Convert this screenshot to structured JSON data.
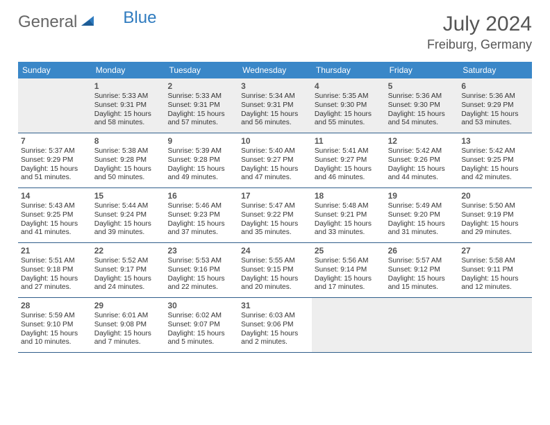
{
  "logo": {
    "text1": "General",
    "text2": "Blue"
  },
  "header": {
    "month": "July 2024",
    "location": "Freiburg, Germany"
  },
  "colors": {
    "brand_blue": "#3a87c8",
    "rule": "#2f5d8a",
    "text": "#333333",
    "muted": "#555555",
    "shade": "#eeeeee"
  },
  "dayheads": [
    "Sunday",
    "Monday",
    "Tuesday",
    "Wednesday",
    "Thursday",
    "Friday",
    "Saturday"
  ],
  "weeks": [
    [
      null,
      {
        "n": "1",
        "sr": "Sunrise: 5:33 AM",
        "ss": "Sunset: 9:31 PM",
        "d1": "Daylight: 15 hours",
        "d2": "and 58 minutes."
      },
      {
        "n": "2",
        "sr": "Sunrise: 5:33 AM",
        "ss": "Sunset: 9:31 PM",
        "d1": "Daylight: 15 hours",
        "d2": "and 57 minutes."
      },
      {
        "n": "3",
        "sr": "Sunrise: 5:34 AM",
        "ss": "Sunset: 9:31 PM",
        "d1": "Daylight: 15 hours",
        "d2": "and 56 minutes."
      },
      {
        "n": "4",
        "sr": "Sunrise: 5:35 AM",
        "ss": "Sunset: 9:30 PM",
        "d1": "Daylight: 15 hours",
        "d2": "and 55 minutes."
      },
      {
        "n": "5",
        "sr": "Sunrise: 5:36 AM",
        "ss": "Sunset: 9:30 PM",
        "d1": "Daylight: 15 hours",
        "d2": "and 54 minutes."
      },
      {
        "n": "6",
        "sr": "Sunrise: 5:36 AM",
        "ss": "Sunset: 9:29 PM",
        "d1": "Daylight: 15 hours",
        "d2": "and 53 minutes."
      }
    ],
    [
      {
        "n": "7",
        "sr": "Sunrise: 5:37 AM",
        "ss": "Sunset: 9:29 PM",
        "d1": "Daylight: 15 hours",
        "d2": "and 51 minutes."
      },
      {
        "n": "8",
        "sr": "Sunrise: 5:38 AM",
        "ss": "Sunset: 9:28 PM",
        "d1": "Daylight: 15 hours",
        "d2": "and 50 minutes."
      },
      {
        "n": "9",
        "sr": "Sunrise: 5:39 AM",
        "ss": "Sunset: 9:28 PM",
        "d1": "Daylight: 15 hours",
        "d2": "and 49 minutes."
      },
      {
        "n": "10",
        "sr": "Sunrise: 5:40 AM",
        "ss": "Sunset: 9:27 PM",
        "d1": "Daylight: 15 hours",
        "d2": "and 47 minutes."
      },
      {
        "n": "11",
        "sr": "Sunrise: 5:41 AM",
        "ss": "Sunset: 9:27 PM",
        "d1": "Daylight: 15 hours",
        "d2": "and 46 minutes."
      },
      {
        "n": "12",
        "sr": "Sunrise: 5:42 AM",
        "ss": "Sunset: 9:26 PM",
        "d1": "Daylight: 15 hours",
        "d2": "and 44 minutes."
      },
      {
        "n": "13",
        "sr": "Sunrise: 5:42 AM",
        "ss": "Sunset: 9:25 PM",
        "d1": "Daylight: 15 hours",
        "d2": "and 42 minutes."
      }
    ],
    [
      {
        "n": "14",
        "sr": "Sunrise: 5:43 AM",
        "ss": "Sunset: 9:25 PM",
        "d1": "Daylight: 15 hours",
        "d2": "and 41 minutes."
      },
      {
        "n": "15",
        "sr": "Sunrise: 5:44 AM",
        "ss": "Sunset: 9:24 PM",
        "d1": "Daylight: 15 hours",
        "d2": "and 39 minutes."
      },
      {
        "n": "16",
        "sr": "Sunrise: 5:46 AM",
        "ss": "Sunset: 9:23 PM",
        "d1": "Daylight: 15 hours",
        "d2": "and 37 minutes."
      },
      {
        "n": "17",
        "sr": "Sunrise: 5:47 AM",
        "ss": "Sunset: 9:22 PM",
        "d1": "Daylight: 15 hours",
        "d2": "and 35 minutes."
      },
      {
        "n": "18",
        "sr": "Sunrise: 5:48 AM",
        "ss": "Sunset: 9:21 PM",
        "d1": "Daylight: 15 hours",
        "d2": "and 33 minutes."
      },
      {
        "n": "19",
        "sr": "Sunrise: 5:49 AM",
        "ss": "Sunset: 9:20 PM",
        "d1": "Daylight: 15 hours",
        "d2": "and 31 minutes."
      },
      {
        "n": "20",
        "sr": "Sunrise: 5:50 AM",
        "ss": "Sunset: 9:19 PM",
        "d1": "Daylight: 15 hours",
        "d2": "and 29 minutes."
      }
    ],
    [
      {
        "n": "21",
        "sr": "Sunrise: 5:51 AM",
        "ss": "Sunset: 9:18 PM",
        "d1": "Daylight: 15 hours",
        "d2": "and 27 minutes."
      },
      {
        "n": "22",
        "sr": "Sunrise: 5:52 AM",
        "ss": "Sunset: 9:17 PM",
        "d1": "Daylight: 15 hours",
        "d2": "and 24 minutes."
      },
      {
        "n": "23",
        "sr": "Sunrise: 5:53 AM",
        "ss": "Sunset: 9:16 PM",
        "d1": "Daylight: 15 hours",
        "d2": "and 22 minutes."
      },
      {
        "n": "24",
        "sr": "Sunrise: 5:55 AM",
        "ss": "Sunset: 9:15 PM",
        "d1": "Daylight: 15 hours",
        "d2": "and 20 minutes."
      },
      {
        "n": "25",
        "sr": "Sunrise: 5:56 AM",
        "ss": "Sunset: 9:14 PM",
        "d1": "Daylight: 15 hours",
        "d2": "and 17 minutes."
      },
      {
        "n": "26",
        "sr": "Sunrise: 5:57 AM",
        "ss": "Sunset: 9:12 PM",
        "d1": "Daylight: 15 hours",
        "d2": "and 15 minutes."
      },
      {
        "n": "27",
        "sr": "Sunrise: 5:58 AM",
        "ss": "Sunset: 9:11 PM",
        "d1": "Daylight: 15 hours",
        "d2": "and 12 minutes."
      }
    ],
    [
      {
        "n": "28",
        "sr": "Sunrise: 5:59 AM",
        "ss": "Sunset: 9:10 PM",
        "d1": "Daylight: 15 hours",
        "d2": "and 10 minutes."
      },
      {
        "n": "29",
        "sr": "Sunrise: 6:01 AM",
        "ss": "Sunset: 9:08 PM",
        "d1": "Daylight: 15 hours",
        "d2": "and 7 minutes."
      },
      {
        "n": "30",
        "sr": "Sunrise: 6:02 AM",
        "ss": "Sunset: 9:07 PM",
        "d1": "Daylight: 15 hours",
        "d2": "and 5 minutes."
      },
      {
        "n": "31",
        "sr": "Sunrise: 6:03 AM",
        "ss": "Sunset: 9:06 PM",
        "d1": "Daylight: 15 hours",
        "d2": "and 2 minutes."
      },
      null,
      null,
      null
    ]
  ]
}
